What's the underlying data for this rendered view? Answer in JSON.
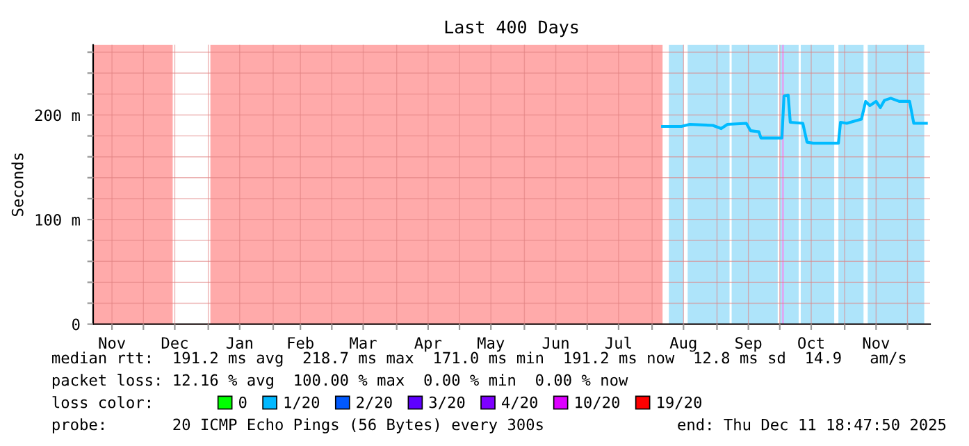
{
  "chart_data": {
    "type": "line",
    "title": "Last 400 Days",
    "ylabel": "Seconds",
    "x": [
      "2025-08-06",
      "2025-08-15",
      "2025-08-19",
      "2025-08-30",
      "2025-09-03",
      "2025-09-06",
      "2025-09-15",
      "2025-09-17",
      "2025-09-21",
      "2025-09-22",
      "2025-10-02",
      "2025-10-03",
      "2025-10-05",
      "2025-10-06",
      "2025-10-12",
      "2025-10-14",
      "2025-10-17",
      "2025-10-29",
      "2025-10-30",
      "2025-11-02",
      "2025-11-09",
      "2025-11-11",
      "2025-11-13",
      "2025-11-16",
      "2025-11-18",
      "2025-11-20",
      "2025-11-23",
      "2025-11-27",
      "2025-12-02",
      "2025-12-04",
      "2025-12-10"
    ],
    "series": [
      {
        "color": "#00bbff",
        "values": [
          189,
          189,
          191,
          190,
          187,
          191,
          192,
          185,
          184,
          178,
          178,
          218,
          219,
          193,
          192,
          174,
          173,
          173,
          193,
          192,
          196,
          213,
          209,
          213,
          207,
          214,
          216,
          213,
          213,
          192,
          192
        ]
      },
      {
        "name": "0",
        "color": "#00ff00",
        "values": [
          null,
          null,
          null,
          null,
          null,
          null,
          null,
          null,
          null,
          null,
          null,
          null,
          null,
          null,
          null,
          null,
          null,
          null,
          null,
          null,
          null,
          null,
          null,
          null,
          null,
          null,
          null,
          null,
          null,
          null,
          null
        ]
      },
      {
        "name": "1/20",
        "color": "#00b8ff",
        "values": [
          null,
          null,
          null,
          null,
          null,
          null,
          null,
          null,
          null,
          null,
          null,
          null,
          null,
          null,
          null,
          null,
          null,
          null,
          null,
          null,
          null,
          null,
          null,
          null,
          null,
          null,
          null,
          null,
          null,
          null,
          null
        ]
      },
      {
        "name": "2/20",
        "color": "#0059ff",
        "values": [
          null,
          null,
          null,
          null,
          null,
          null,
          null,
          null,
          null,
          null,
          null,
          null,
          null,
          null,
          null,
          null,
          null,
          null,
          null,
          null,
          null,
          null,
          null,
          null,
          null,
          null,
          null,
          null,
          null,
          null,
          null
        ]
      },
      {
        "name": "3/20",
        "color": "#5e00ff",
        "values": [
          null,
          null,
          null,
          null,
          null,
          null,
          null,
          null,
          null,
          null,
          null,
          null,
          null,
          null,
          null,
          null,
          null,
          null,
          null,
          null,
          null,
          null,
          null,
          null,
          null,
          null,
          null,
          null,
          null,
          null,
          null
        ]
      },
      {
        "name": "4/20",
        "color": "#7e00ff",
        "values": [
          null,
          null,
          null,
          null,
          null,
          null,
          null,
          null,
          null,
          null,
          null,
          null,
          null,
          null,
          null,
          null,
          null,
          null,
          null,
          null,
          null,
          null,
          null,
          null,
          null,
          null,
          null,
          null,
          null,
          null,
          null
        ]
      },
      {
        "name": "10/20",
        "color": "#dd00ff",
        "values": [
          null,
          null,
          null,
          null,
          null,
          null,
          null,
          null,
          null,
          null,
          null,
          null,
          null,
          null,
          null,
          null,
          null,
          null,
          null,
          null,
          null,
          null,
          null,
          null,
          null,
          null,
          null,
          null,
          null,
          null,
          null
        ]
      },
      {
        "name": "19/20",
        "color": "#ff0000",
        "values": [
          null,
          null,
          null,
          null,
          null,
          null,
          null,
          null,
          null,
          null,
          null,
          null,
          null,
          null,
          null,
          null,
          null,
          null,
          null,
          null,
          null,
          null,
          null,
          null,
          null,
          null,
          null,
          null,
          null,
          null,
          null
        ]
      }
    ],
    "xlim": [
      "2024-11-07",
      "2025-12-11T18:47"
    ],
    "xticks": [
      {
        "value": "2024-11-16",
        "label": "Nov"
      },
      {
        "value": "2024-12-01",
        "label": null
      },
      {
        "value": "2024-12-16",
        "label": "Dec"
      },
      {
        "value": "2025-01-01",
        "label": null
      },
      {
        "value": "2025-01-16",
        "label": "Jan"
      },
      {
        "value": "2025-02-01",
        "label": null
      },
      {
        "value": "2025-02-14",
        "label": "Feb"
      },
      {
        "value": "2025-03-01",
        "label": null
      },
      {
        "value": "2025-03-16",
        "label": "Mar"
      },
      {
        "value": "2025-04-01",
        "label": null
      },
      {
        "value": "2025-04-16",
        "label": "Apr"
      },
      {
        "value": "2025-05-01",
        "label": null
      },
      {
        "value": "2025-05-16",
        "label": "May"
      },
      {
        "value": "2025-06-01",
        "label": null
      },
      {
        "value": "2025-06-16",
        "label": "Jun"
      },
      {
        "value": "2025-07-01",
        "label": null
      },
      {
        "value": "2025-07-16",
        "label": "Jul"
      },
      {
        "value": "2025-08-01",
        "label": null
      },
      {
        "value": "2025-08-16",
        "label": "Aug"
      },
      {
        "value": "2025-09-01",
        "label": null
      },
      {
        "value": "2025-09-16",
        "label": "Sep"
      },
      {
        "value": "2025-10-01",
        "label": null
      },
      {
        "value": "2025-10-16",
        "label": "Oct"
      },
      {
        "value": "2025-11-01",
        "label": null
      },
      {
        "value": "2025-11-16",
        "label": "Nov"
      },
      {
        "value": "2025-12-01",
        "label": null
      }
    ],
    "ylim": [
      0,
      267
    ],
    "yticks": [
      0,
      {
        "value": 20,
        "label": null
      },
      {
        "value": 40,
        "label": null
      },
      {
        "value": 60,
        "label": null
      },
      {
        "value": 80,
        "label": null
      },
      {
        "value": 100,
        "label": "100 m"
      },
      {
        "value": 120,
        "label": null
      },
      {
        "value": 140,
        "label": null
      },
      {
        "value": 160,
        "label": null
      },
      {
        "value": 180,
        "label": null
      },
      {
        "value": 200,
        "label": "200 m"
      },
      {
        "value": 220,
        "label": null
      },
      {
        "value": 240,
        "label": null
      },
      {
        "value": 260,
        "label": null
      }
    ],
    "grid": true,
    "legend": "bottom",
    "bands": [
      {
        "axis": "x",
        "from": "2024-11-07",
        "to": "2024-12-15",
        "color": "#ffaaaa"
      },
      {
        "axis": "x",
        "from": "2025-01-02",
        "to": "2025-08-06",
        "color": "#ffaaaa"
      },
      {
        "axis": "x",
        "from": "2025-08-09",
        "to": "2025-08-16",
        "color": "#aee4fa"
      },
      {
        "axis": "x",
        "from": "2025-08-18",
        "to": "2025-09-07",
        "color": "#aee4fa"
      },
      {
        "axis": "x",
        "from": "2025-09-08",
        "to": "2025-09-30",
        "color": "#aee4fa"
      },
      {
        "axis": "x",
        "from": "2025-10-01",
        "to": "2025-10-10",
        "color": "#aee4fa"
      },
      {
        "axis": "x",
        "from": "2025-10-02",
        "to": "2025-10-03",
        "color": "#dda8f2"
      },
      {
        "axis": "x",
        "from": "2025-10-11",
        "to": "2025-10-27",
        "color": "#aee4fa"
      },
      {
        "axis": "x",
        "from": "2025-10-29",
        "to": "2025-11-10",
        "color": "#aee4fa"
      },
      {
        "axis": "x",
        "from": "2025-11-12",
        "to": "2025-12-09",
        "color": "#aee4fa"
      }
    ],
    "annotations": [
      "median rtt:  191.2 ms avg  218.7 ms max  171.0 ms min  191.2 ms now  12.8 ms sd  14.9   am/s",
      "packet loss: 12.16 % avg  100.00 % max  0.00 % min  0.00 % now",
      "loss color:",
      "probe:       20 ICMP Echo Pings (56 Bytes) every 300s",
      "end: Thu Dec 11 18:47:50 2025"
    ]
  }
}
